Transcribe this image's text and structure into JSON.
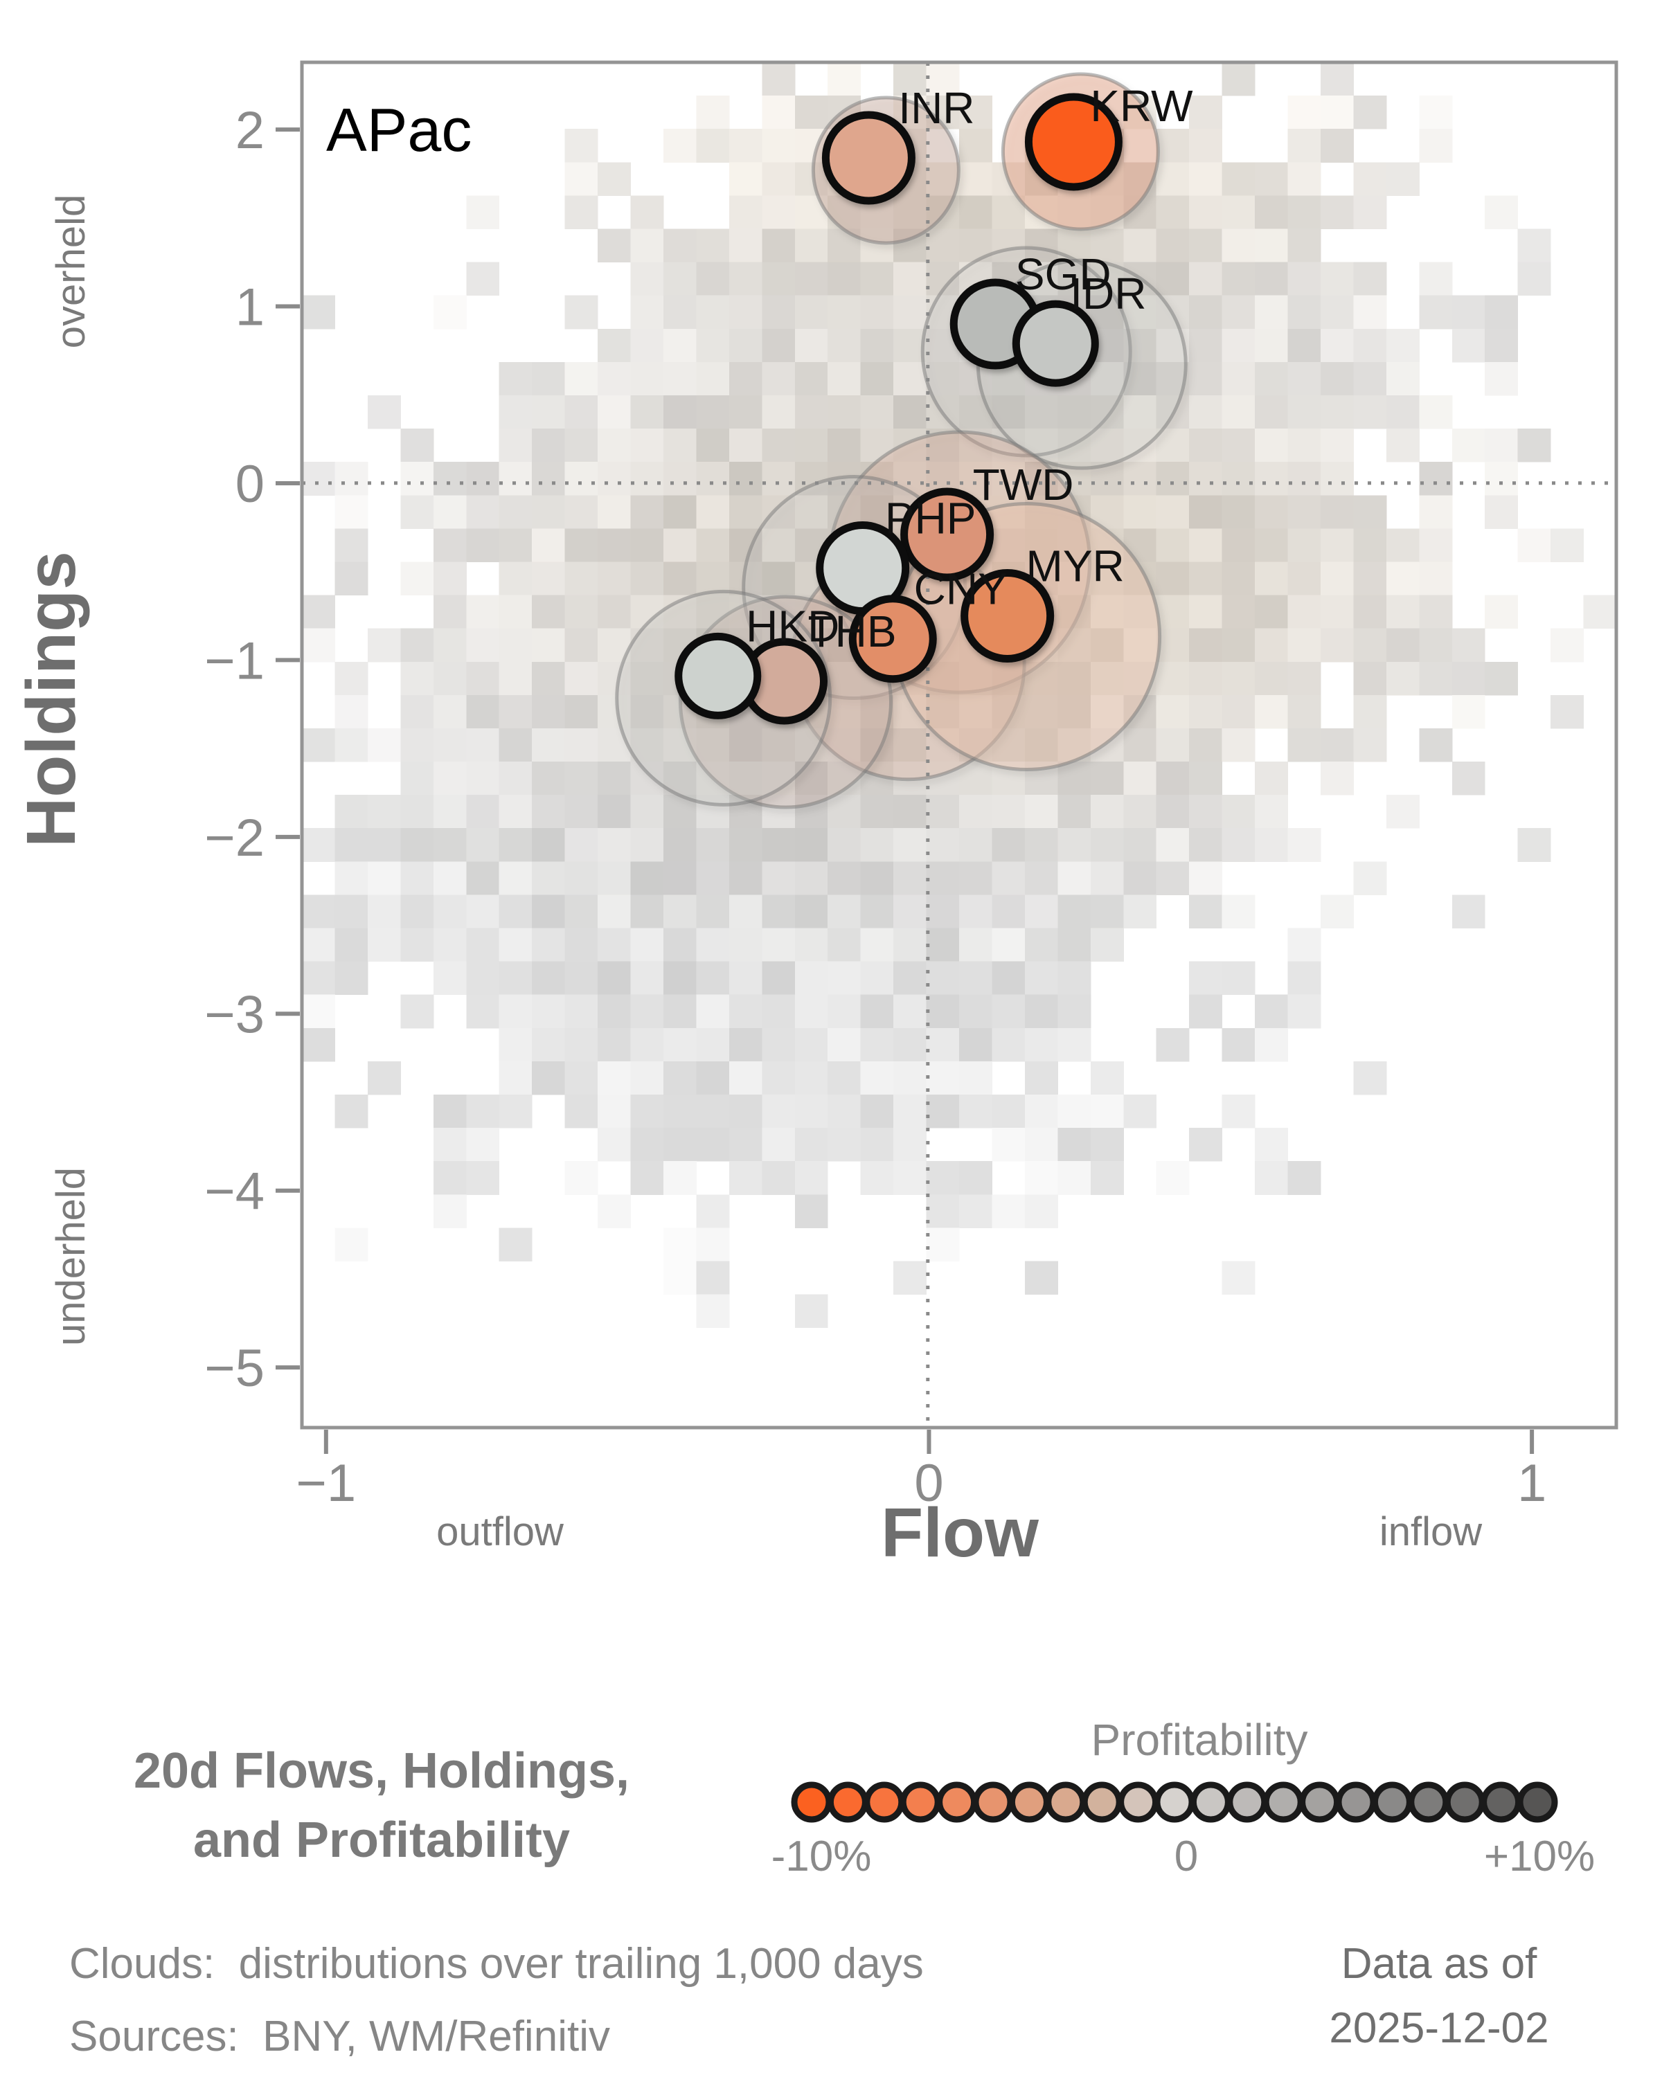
{
  "plot": {
    "region_label": "APac",
    "x_axis": {
      "title": "Flow",
      "left_hint": "outflow",
      "right_hint": "inflow",
      "tick_labels": [
        "−1",
        "0",
        "1"
      ]
    },
    "y_axis": {
      "title": "Holdings",
      "top_hint": "overheld",
      "bottom_hint": "underheld",
      "tick_labels": [
        "2",
        "1",
        "0",
        "−1",
        "−2",
        "−3",
        "−4",
        "−5"
      ]
    }
  },
  "chart_data": {
    "type": "scatter",
    "title": "20d Flows, Holdings, and Profitability",
    "xlabel": "Flow",
    "ylabel": "Holdings",
    "xlim": [
      -1.04,
      1.14
    ],
    "ylim": [
      -5.34,
      2.38
    ],
    "x_ticks": [
      -1,
      0,
      1
    ],
    "y_ticks": [
      2,
      1,
      0,
      -1,
      -2,
      -3,
      -4,
      -5
    ],
    "grid": "dotted zero lines only",
    "points": [
      {
        "code": "INR",
        "flow": -0.1,
        "holdings": 1.84,
        "color": "#DFA68D",
        "r": 62,
        "halo_r": 105,
        "halo_dx": 25,
        "halo_dy": 18,
        "halo_fill": "rgba(200,170,158,0.42)"
      },
      {
        "code": "KRW",
        "flow": 0.24,
        "holdings": 1.93,
        "color": "#FA5C1B",
        "r": 65,
        "halo_r": 112,
        "halo_dx": 10,
        "halo_dy": 14,
        "halo_fill": "rgba(232,172,146,0.50)",
        "label_dy": -52
      },
      {
        "code": "SGD",
        "flow": 0.11,
        "holdings": 0.9,
        "color": "#B9BBB8",
        "r": 60,
        "halo_r": 150,
        "halo_dx": 45,
        "halo_dy": 40,
        "halo_fill": "rgba(185,188,185,0.15)"
      },
      {
        "code": "IDR",
        "flow": 0.21,
        "holdings": 0.79,
        "color": "#C5C7C4",
        "r": 57,
        "halo_r": 150,
        "halo_dx": 38,
        "halo_dy": 30,
        "halo_fill": "rgba(195,197,194,0.18)",
        "label_dx": 76
      },
      {
        "code": "TWD",
        "flow": 0.03,
        "holdings": -0.29,
        "color": "#DB9478",
        "r": 62,
        "halo_r": 188,
        "halo_dx": 18,
        "halo_dy": 40,
        "halo_fill": "rgba(222,172,150,0.28)",
        "label_dx": 110
      },
      {
        "code": "PHP",
        "flow": -0.11,
        "holdings": -0.48,
        "color": "#D2D6D3",
        "r": 62,
        "halo_r": 160,
        "halo_dx": -12,
        "halo_dy": 28,
        "halo_fill": "rgba(190,193,191,0.22)"
      },
      {
        "code": "CNY",
        "flow": -0.06,
        "holdings": -0.88,
        "color": "#E28E68",
        "r": 58,
        "halo_r": 168,
        "halo_dx": 22,
        "halo_dy": 35,
        "halo_fill": "rgba(226,176,153,0.28)"
      },
      {
        "code": "MYR",
        "flow": 0.13,
        "holdings": -0.75,
        "color": "#E58A5C",
        "r": 62,
        "halo_r": 192,
        "halo_dx": 28,
        "halo_dy": 30,
        "halo_fill": "rgba(240,200,178,0.40)"
      },
      {
        "code": "THB",
        "flow": -0.24,
        "holdings": -1.12,
        "color": "#D2AB9B",
        "r": 57,
        "halo_r": 152,
        "halo_dx": 2,
        "halo_dy": 30,
        "halo_fill": "rgba(205,180,168,0.30)"
      },
      {
        "code": "HKD",
        "flow": -0.35,
        "holdings": -1.09,
        "color": "#CDD2CE",
        "r": 57,
        "halo_r": 154,
        "halo_dx": 8,
        "halo_dy": 32,
        "halo_fill": "rgba(194,196,192,0.25)",
        "label_dx": 108
      }
    ],
    "cloud": {
      "description": "2D histogram of distributions over trailing 1,000 days",
      "seed": 20251202,
      "threshold": 0.3,
      "noise": 0.55,
      "gaussians": [
        {
          "x": -0.12,
          "y": -0.7,
          "sx": 0.42,
          "sy": 1.35,
          "w": 1.0
        },
        {
          "x": 0.25,
          "y": 1.15,
          "sx": 0.33,
          "sy": 0.6,
          "w": 0.55
        },
        {
          "x": -0.45,
          "y": -2.2,
          "sx": 0.45,
          "sy": 0.85,
          "w": 0.5
        },
        {
          "x": 0.55,
          "y": -0.35,
          "sx": 0.38,
          "sy": 0.85,
          "w": 0.35
        },
        {
          "x": -0.25,
          "y": -3.6,
          "sx": 0.55,
          "sy": 0.5,
          "w": 0.22
        }
      ],
      "warm_tint": [
        {
          "x": 0.1,
          "y": -0.55,
          "sx": 0.5,
          "sy": 0.8,
          "w": 1.0
        },
        {
          "x": 0.12,
          "y": 1.7,
          "sx": 0.45,
          "sy": 0.55,
          "w": 0.8
        }
      ]
    }
  },
  "legend": {
    "title": "Profitability",
    "min_label": "-10%",
    "mid_label": "0",
    "max_label": "+10%",
    "colors": [
      "#FB6120",
      "#FA6A2F",
      "#F7743E",
      "#F37F4E",
      "#EE8A5E",
      "#E7946E",
      "#E09F7E",
      "#D9A98E",
      "#D2B29D",
      "#D4C4BA",
      "#D6D2CE",
      "#C9C6C3",
      "#BDBAB8",
      "#B0AEAC",
      "#A4A2A0",
      "#979594",
      "#8A8988",
      "#7D7C7B",
      "#706F6E",
      "#636261",
      "#565554"
    ]
  },
  "footer": {
    "title_line1": "20d Flows, Holdings,",
    "title_line2": "and Profitability",
    "clouds_note": "Clouds:  distributions over trailing 1,000 days",
    "sources_note": "Sources:  BNY, WM/Refinitiv",
    "data_as_of_line1": "Data as of",
    "data_as_of_line2": "2025-12-02"
  },
  "colors": {
    "axis_border": "#949494",
    "tick": "#8a8a8a",
    "axis_title": "#6e6e6e",
    "hint_text": "#7a7a7a",
    "footer_text": "#868686",
    "footer_title": "#7a7a7a",
    "date_text": "#6f6f6f",
    "bubble_ring": "#0f0f0f",
    "region_label": "#000000"
  }
}
